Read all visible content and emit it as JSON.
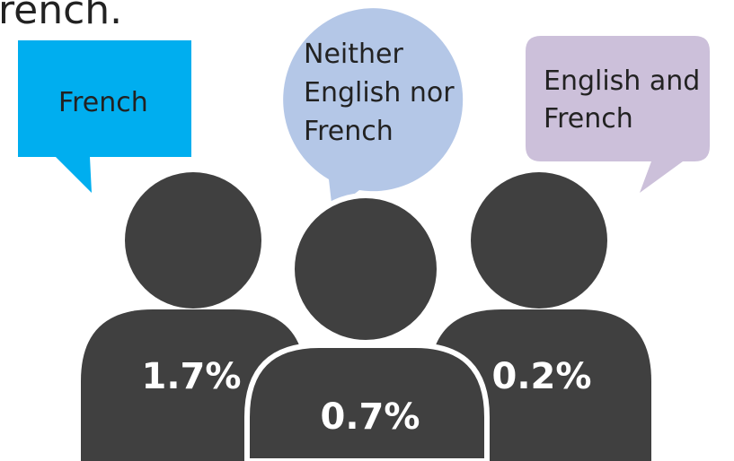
{
  "heading": "rench.",
  "groups": [
    {
      "label": [
        "French"
      ],
      "value": "1.7%"
    },
    {
      "label": [
        "Neither",
        "English nor",
        "French"
      ],
      "value": "0.7%"
    },
    {
      "label": [
        "English and",
        "French"
      ],
      "value": "0.2%"
    }
  ]
}
